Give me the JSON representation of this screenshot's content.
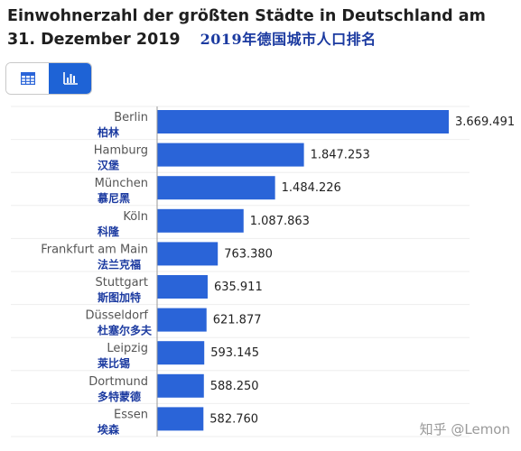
{
  "title": "Einwohnerzahl der größten Städte in Deutschland am 31. Dezember 2019",
  "cn_title": "2019年德国城市人口排名",
  "view_toggle": {
    "table_icon": "table-grid-icon",
    "chart_icon": "bar-chart-icon",
    "active": "chart"
  },
  "chart_data": {
    "type": "bar",
    "orientation": "horizontal",
    "categories": [
      "Berlin",
      "Hamburg",
      "München",
      "Köln",
      "Frankfurt am Main",
      "Stuttgart",
      "Düsseldorf",
      "Leipzig",
      "Dortmund",
      "Essen"
    ],
    "categories_cn": [
      "柏林",
      "汉堡",
      "慕尼黑",
      "科隆",
      "法兰克福",
      "斯图加特",
      "杜塞尔多夫",
      "莱比锡",
      "多特蒙德",
      "埃森"
    ],
    "values": [
      3669491,
      1847253,
      1484226,
      1087863,
      763380,
      635911,
      621877,
      593145,
      588250,
      582760
    ],
    "value_labels": [
      "3.669.491",
      "1.847.253",
      "1.484.226",
      "1.087.863",
      "763.380",
      "635.911",
      "621.877",
      "593.145",
      "588.250",
      "582.760"
    ],
    "bar_color": "#2a64d8",
    "cn_label_color": "#1b3aa0",
    "grid": true
  },
  "watermark": "知乎 @Lemon"
}
